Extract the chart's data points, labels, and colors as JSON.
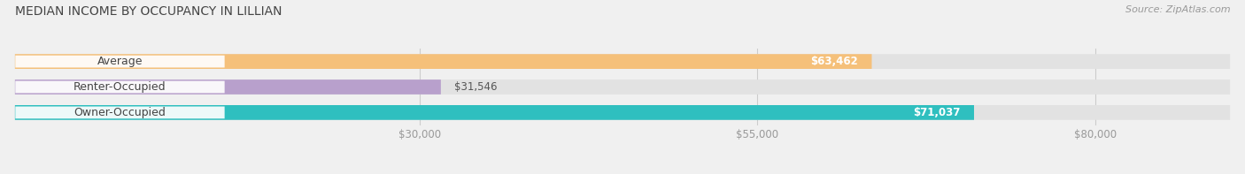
{
  "title": "MEDIAN INCOME BY OCCUPANCY IN LILLIAN",
  "source_text": "Source: ZipAtlas.com",
  "categories": [
    "Owner-Occupied",
    "Renter-Occupied",
    "Average"
  ],
  "values": [
    71037,
    31546,
    63462
  ],
  "bar_colors": [
    "#2fbfbf",
    "#b8a0cc",
    "#f5c07a"
  ],
  "track_color": "#e2e2e2",
  "value_labels": [
    "$71,037",
    "$31,546",
    "$63,462"
  ],
  "value_label_inside": [
    true,
    false,
    true
  ],
  "xmin": 0,
  "xmax": 90000,
  "xticks": [
    30000,
    55000,
    80000
  ],
  "xtick_labels": [
    "$30,000",
    "$55,000",
    "$80,000"
  ],
  "bar_height": 0.58,
  "figsize": [
    14.06,
    1.97
  ],
  "dpi": 100,
  "title_fontsize": 10,
  "source_fontsize": 8,
  "tick_fontsize": 8.5,
  "bar_label_fontsize": 9,
  "value_fontsize": 8.5,
  "background_color": "#f0f0f0",
  "title_color": "#444444",
  "tick_color": "#999999",
  "source_color": "#999999"
}
